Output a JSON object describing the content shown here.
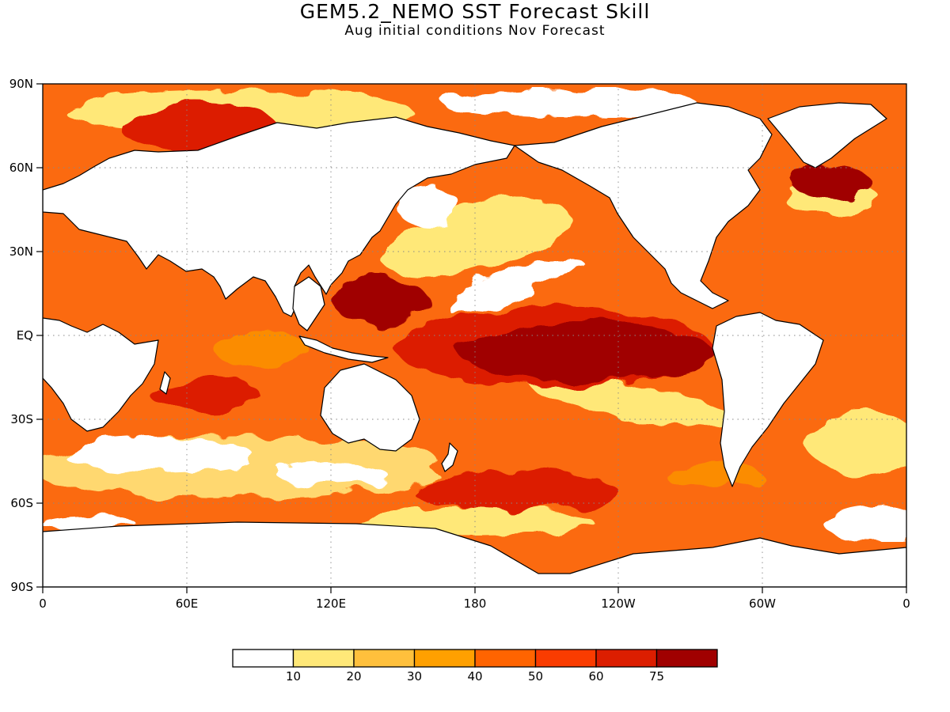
{
  "title": "GEM5.2_NEMO SST Forecast Skill",
  "subtitle": "Aug initial conditions  Nov Forecast",
  "map": {
    "lon_labels": [
      "0",
      "60E",
      "120E",
      "180",
      "120W",
      "60W",
      "0"
    ],
    "lat_labels": [
      "90N",
      "60N",
      "30N",
      "EQ",
      "30S",
      "60S",
      "90S"
    ],
    "grid": "dotted",
    "land_color": "#ffffff"
  },
  "legend": {
    "placement": "bottom",
    "colors": [
      "#ffffff",
      "#ffe878",
      "#ffc03c",
      "#ffa000",
      "#ff6400",
      "#fa3c00",
      "#dc1e00",
      "#a00000"
    ],
    "tick_labels": [
      "10",
      "20",
      "30",
      "40",
      "50",
      "60",
      "75"
    ]
  }
}
